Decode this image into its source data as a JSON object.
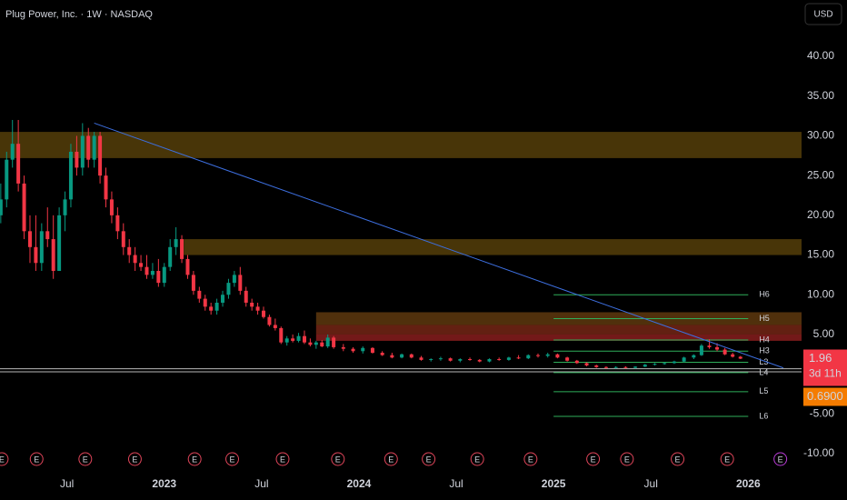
{
  "chart_data": {
    "type": "candlestick",
    "title": "Plug Power, Inc. · 1W · NASDAQ",
    "currency": "USD",
    "xlim": [
      2022.156,
      2026.274
    ],
    "ylim": [
      -12.4,
      47.1
    ],
    "xticks": [
      {
        "value": 2022.5,
        "label": "Jul"
      },
      {
        "value": 2023,
        "label": "2023"
      },
      {
        "value": 2023.5,
        "label": "Jul"
      },
      {
        "value": 2024,
        "label": "2024"
      },
      {
        "value": 2024.5,
        "label": "Jul"
      },
      {
        "value": 2025,
        "label": "2025"
      },
      {
        "value": 2025.5,
        "label": "Jul"
      },
      {
        "value": 2026,
        "label": "2026"
      }
    ],
    "yticks": [
      {
        "value": 40,
        "label": "40.00"
      },
      {
        "value": 35,
        "label": "35.00"
      },
      {
        "value": 30,
        "label": "30.00"
      },
      {
        "value": 25,
        "label": "25.00"
      },
      {
        "value": 20,
        "label": "20.00"
      },
      {
        "value": 15,
        "label": "15.00"
      },
      {
        "value": 10,
        "label": "10.00"
      },
      {
        "value": 5,
        "label": "5.00"
      },
      {
        "value": -5,
        "label": "-5.00"
      },
      {
        "value": -10,
        "label": "-10.00"
      }
    ],
    "up_color": "#089981",
    "down_color": "#f23645",
    "x": [
      2022.16,
      2022.19,
      2022.22,
      2022.25,
      2022.28,
      2022.31,
      2022.34,
      2022.37,
      2022.4,
      2022.43,
      2022.46,
      2022.49,
      2022.52,
      2022.55,
      2022.58,
      2022.61,
      2022.64,
      2022.67,
      2022.7,
      2022.73,
      2022.76,
      2022.79,
      2022.82,
      2022.85,
      2022.88,
      2022.91,
      2022.94,
      2022.97,
      2023.0,
      2023.03,
      2023.06,
      2023.09,
      2023.12,
      2023.15,
      2023.18,
      2023.21,
      2023.24,
      2023.27,
      2023.3,
      2023.33,
      2023.36,
      2023.39,
      2023.42,
      2023.45,
      2023.48,
      2023.51,
      2023.54,
      2023.57,
      2023.6,
      2023.63,
      2023.66,
      2023.69,
      2023.72,
      2023.75,
      2023.78,
      2023.81,
      2023.84,
      2023.87,
      2023.92,
      2023.97,
      2024.02,
      2024.07,
      2024.12,
      2024.17,
      2024.22,
      2024.27,
      2024.32,
      2024.37,
      2024.42,
      2024.47,
      2024.52,
      2024.57,
      2024.62,
      2024.67,
      2024.72,
      2024.77,
      2024.82,
      2024.87,
      2024.92,
      2024.97,
      2025.02,
      2025.07,
      2025.12,
      2025.17,
      2025.22,
      2025.27,
      2025.32,
      2025.37,
      2025.42,
      2025.47,
      2025.52,
      2025.57,
      2025.62,
      2025.67,
      2025.72,
      2025.76,
      2025.8,
      2025.84,
      2025.88,
      2025.92,
      2025.96
    ],
    "open": [
      20,
      22,
      27,
      29,
      24,
      18,
      16,
      14,
      18,
      17,
      13,
      20,
      22,
      28,
      26,
      30,
      27,
      30,
      25,
      22,
      20,
      18,
      16,
      15,
      14,
      13.5,
      12.5,
      13,
      11.5,
      13.5,
      16,
      17,
      14.5,
      12.5,
      10.5,
      9.5,
      8.5,
      8,
      9,
      10,
      11.5,
      12.5,
      10.5,
      9,
      8.5,
      8,
      7.2,
      6.2,
      5.8,
      4,
      4.5,
      4.2,
      4.8,
      4,
      3.7,
      4,
      3.5,
      4.6,
      3.4,
      3.2,
      2.9,
      3.3,
      2.7,
      2.4,
      2.1,
      2.5,
      2.1,
      1.8,
      1.9,
      2.0,
      1.7,
      1.9,
      1.8,
      1.6,
      1.9,
      1.8,
      2.1,
      2.0,
      2.4,
      2.3,
      2.5,
      2.1,
      1.7,
      1.4,
      1.1,
      0.9,
      0.8,
      0.9,
      0.8,
      0.95,
      1.2,
      1.3,
      1.4,
      1.6,
      2.1,
      2.4,
      3.6,
      3.4,
      3.1,
      2.5,
      2.2
    ],
    "high": [
      24,
      28,
      32,
      32,
      25,
      20,
      20,
      19,
      21,
      20,
      21,
      23,
      29,
      30,
      31.6,
      31,
      30.5,
      30.5,
      26,
      23,
      21,
      19,
      17,
      16,
      15,
      15,
      14,
      14.5,
      14,
      17,
      18.5,
      17.5,
      15,
      13,
      11,
      10,
      9,
      9.5,
      10.5,
      12,
      13,
      13.5,
      11,
      9.5,
      9,
      8.5,
      7.5,
      7,
      6,
      4.8,
      5,
      5.2,
      5.5,
      4.5,
      4.2,
      4.3,
      5,
      4.8,
      3.8,
      3.4,
      3.5,
      3.4,
      2.9,
      2.7,
      2.6,
      2.6,
      2.3,
      2.0,
      2.2,
      2.1,
      2.0,
      2.1,
      1.9,
      2.0,
      2.1,
      2.2,
      2.4,
      2.5,
      2.6,
      2.7,
      2.6,
      2.2,
      1.8,
      1.5,
      1.2,
      1.0,
      1.0,
      1.0,
      1.0,
      1.3,
      1.4,
      1.5,
      1.7,
      2.2,
      2.5,
      3.8,
      4.4,
      3.9,
      3.3,
      2.7,
      2.3
    ],
    "low": [
      19,
      21,
      26,
      23,
      17,
      14,
      13,
      13,
      16,
      12,
      13,
      18,
      21,
      25,
      25,
      26,
      26,
      24,
      21,
      19,
      17,
      15,
      14,
      13,
      13,
      12,
      12,
      11,
      11,
      13,
      15,
      14,
      12,
      10,
      9,
      8,
      7.5,
      7.5,
      8.5,
      9.5,
      11,
      10,
      8.5,
      8,
      7.5,
      7,
      6,
      5.5,
      3.8,
      3.6,
      4,
      4,
      3.8,
      3.5,
      3.2,
      3.4,
      3.3,
      3.2,
      2.9,
      2.7,
      2.6,
      2.6,
      2.3,
      2.0,
      2.0,
      2.0,
      1.7,
      1.6,
      1.7,
      1.6,
      1.5,
      1.7,
      1.5,
      1.5,
      1.7,
      1.7,
      1.9,
      1.9,
      2.1,
      2.1,
      2.0,
      1.6,
      1.3,
      1.0,
      0.8,
      0.7,
      0.7,
      0.7,
      0.7,
      0.9,
      1.1,
      1.2,
      1.3,
      1.5,
      1.9,
      2.3,
      3.2,
      2.9,
      2.4,
      2.1,
      1.9
    ],
    "close": [
      22,
      27,
      29,
      24,
      18,
      16,
      14,
      18,
      17,
      13,
      20,
      22,
      28,
      26,
      30,
      27,
      30,
      25,
      22,
      20,
      18,
      16,
      15,
      14,
      13.5,
      12.5,
      13,
      11.5,
      13.5,
      16,
      17,
      14.5,
      12.5,
      10.5,
      9.5,
      8.5,
      8,
      9,
      10,
      11.5,
      12.5,
      10.5,
      9,
      8.5,
      8,
      7.2,
      6.2,
      5.8,
      4,
      4.5,
      4.2,
      4.8,
      4,
      3.7,
      4,
      3.5,
      4.6,
      3.4,
      3.2,
      2.9,
      3.3,
      2.7,
      2.4,
      2.1,
      2.5,
      2.1,
      1.8,
      1.9,
      2.0,
      1.7,
      1.9,
      1.8,
      1.6,
      1.9,
      1.8,
      2.1,
      2.0,
      2.4,
      2.3,
      2.5,
      2.1,
      1.7,
      1.4,
      1.1,
      0.9,
      0.8,
      0.9,
      0.8,
      0.95,
      1.2,
      1.3,
      1.4,
      1.6,
      2.1,
      2.4,
      3.6,
      3.4,
      3.1,
      2.5,
      2.2,
      1.96
    ],
    "zones": [
      {
        "start": 2022.156,
        "low": 27.2,
        "high": 30.5,
        "color": "rgba(190,140,20,0.38)"
      },
      {
        "start": 2023.1,
        "low": 15,
        "high": 17,
        "color": "rgba(190,140,20,0.38)"
      },
      {
        "start": 2023.78,
        "low": 6.2,
        "high": 7.8,
        "color": "rgba(200,120,30,0.4)"
      },
      {
        "start": 2023.78,
        "low": 5,
        "high": 6.2,
        "color": "rgba(220,70,40,0.45)"
      },
      {
        "start": 2023.78,
        "low": 4.2,
        "high": 5,
        "color": "rgba(230,50,50,0.5)"
      }
    ],
    "trendline": {
      "x": [
        2022.64,
        2026.18
      ],
      "y": [
        31.6,
        0.8
      ],
      "color": "#3d6fe0"
    },
    "pivots": {
      "start": 2025.0,
      "end": 2026.0,
      "color": "#2fae5a",
      "names": [
        "H6",
        "H5",
        "H4",
        "H3",
        "L3",
        "L4",
        "L5",
        "L6"
      ],
      "values": [
        10,
        7,
        4.3,
        2.9,
        1.5,
        0.2,
        -2.2,
        -5.3
      ]
    },
    "hlines": {
      "values": [
        0.69,
        0.3
      ],
      "color": "#b8b8b8"
    },
    "last_price": {
      "value": 1.96,
      "label": "1.96",
      "color": "#f23645"
    },
    "countdown": "3d 11h",
    "marker_price": {
      "value": 0.69,
      "label": "0.6900",
      "color": "#f57c00"
    },
    "earnings": {
      "label": "E",
      "x": [
        2022.165,
        2022.344,
        2022.594,
        2022.849,
        2023.156,
        2023.349,
        2023.608,
        2023.892,
        2024.165,
        2024.358,
        2024.608,
        2024.882,
        2025.203,
        2025.377,
        2025.637,
        2025.892,
        2026.165
      ]
    }
  }
}
